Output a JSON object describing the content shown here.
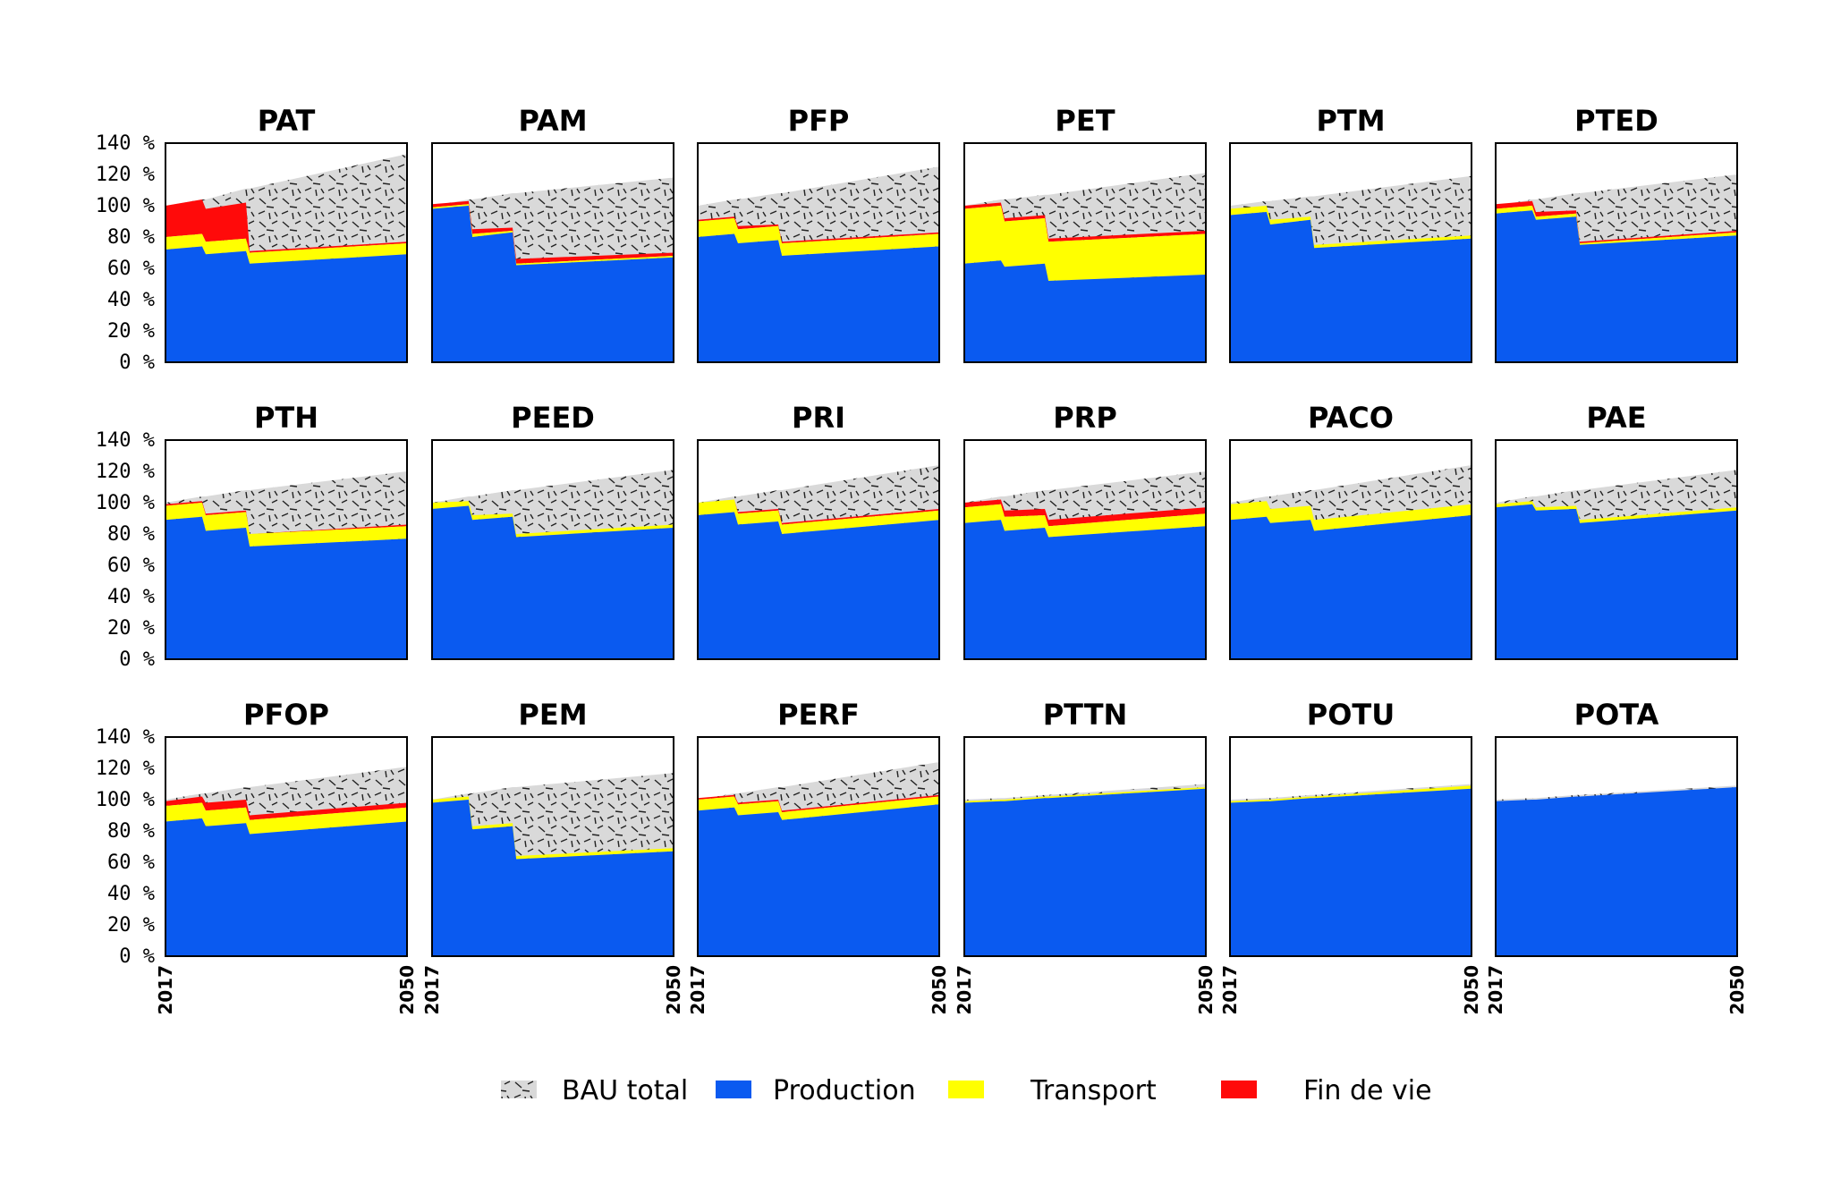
{
  "chart_data": {
    "type": "area",
    "layout": "small-multiples 3x6",
    "x_start": 2017,
    "x_end": 2050,
    "ylim": [
      0,
      140
    ],
    "yticks": [
      "0 %",
      "20 %",
      "40 %",
      "60 %",
      "80 %",
      "100 %",
      "120 %",
      "140 %"
    ],
    "xticks": [
      "2017",
      "2050"
    ],
    "x_points": [
      2017,
      2022,
      2022.5,
      2028,
      2028.5,
      2050
    ],
    "colors": {
      "bau": "#d9d9d9",
      "bau_hatch": "#222222",
      "production": "#0a5af0",
      "transport": "#ffff00",
      "fin_de_vie": "#ff0a0a",
      "border": "#000000"
    },
    "legend": [
      {
        "key": "bau",
        "label": "BAU total"
      },
      {
        "key": "production",
        "label": "Production"
      },
      {
        "key": "transport",
        "label": "Transport"
      },
      {
        "key": "fin_de_vie",
        "label": "Fin de vie"
      }
    ],
    "panels": [
      {
        "title": "PAT",
        "bau": [
          100,
          104,
          104,
          111,
          111,
          133
        ],
        "production": [
          72,
          74,
          69,
          71,
          63,
          69
        ],
        "transport": [
          80,
          82,
          77,
          79,
          70,
          76
        ],
        "fin_de_vie": [
          100,
          104,
          98,
          102,
          71,
          77
        ]
      },
      {
        "title": "PAM",
        "bau": [
          100,
          104,
          104,
          108,
          108,
          118
        ],
        "production": [
          98,
          100,
          80,
          83,
          62,
          67
        ],
        "transport": [
          99,
          101,
          82,
          84,
          63,
          68
        ],
        "fin_de_vie": [
          101,
          103,
          85,
          86,
          66,
          70
        ]
      },
      {
        "title": "PFP",
        "bau": [
          100,
          104,
          104,
          108,
          108,
          125
        ],
        "production": [
          80,
          82,
          76,
          78,
          68,
          74
        ],
        "transport": [
          90,
          92,
          85,
          87,
          76,
          82
        ],
        "fin_de_vie": [
          91,
          93,
          87,
          88,
          77,
          83
        ]
      },
      {
        "title": "PET",
        "bau": [
          100,
          104,
          104,
          107,
          107,
          121
        ],
        "production": [
          63,
          65,
          61,
          63,
          52,
          56
        ],
        "transport": [
          98,
          100,
          90,
          92,
          77,
          82
        ],
        "fin_de_vie": [
          100,
          102,
          92,
          94,
          79,
          84
        ]
      },
      {
        "title": "PTM",
        "bau": [
          100,
          103,
          103,
          106,
          106,
          119
        ],
        "production": [
          94,
          96,
          88,
          91,
          73,
          79
        ],
        "transport": [
          98,
          100,
          91,
          93,
          75,
          81
        ],
        "fin_de_vie": [
          98,
          100,
          91,
          93,
          75,
          81
        ]
      },
      {
        "title": "PTED",
        "bau": [
          100,
          104,
          104,
          108,
          108,
          120
        ],
        "production": [
          95,
          97,
          91,
          93,
          75,
          81
        ],
        "transport": [
          98,
          100,
          93,
          95,
          76,
          83
        ],
        "fin_de_vie": [
          101,
          103,
          96,
          97,
          77,
          84
        ]
      },
      {
        "title": "PTH",
        "bau": [
          100,
          104,
          104,
          108,
          108,
          120
        ],
        "production": [
          89,
          91,
          82,
          84,
          72,
          77
        ],
        "transport": [
          98,
          100,
          92,
          94,
          80,
          85
        ],
        "fin_de_vie": [
          99,
          101,
          93,
          95,
          80,
          86
        ]
      },
      {
        "title": "PEED",
        "bau": [
          100,
          104,
          104,
          108,
          108,
          121
        ],
        "production": [
          96,
          98,
          89,
          91,
          78,
          84
        ],
        "transport": [
          100,
          101,
          92,
          93,
          80,
          86
        ],
        "fin_de_vie": [
          100,
          101,
          92,
          93,
          80,
          86
        ]
      },
      {
        "title": "PRI",
        "bau": [
          100,
          104,
          104,
          108,
          108,
          124
        ],
        "production": [
          92,
          94,
          86,
          88,
          80,
          89
        ],
        "transport": [
          100,
          102,
          93,
          95,
          86,
          95
        ],
        "fin_de_vie": [
          100,
          102,
          94,
          96,
          87,
          96
        ]
      },
      {
        "title": "PRP",
        "bau": [
          100,
          104,
          104,
          108,
          108,
          120
        ],
        "production": [
          87,
          89,
          82,
          84,
          78,
          85
        ],
        "transport": [
          97,
          99,
          91,
          92,
          85,
          93
        ],
        "fin_de_vie": [
          100,
          102,
          95,
          96,
          89,
          97
        ]
      },
      {
        "title": "PACO",
        "bau": [
          100,
          104,
          104,
          108,
          108,
          124
        ],
        "production": [
          89,
          91,
          87,
          89,
          82,
          92
        ],
        "transport": [
          99,
          101,
          96,
          98,
          89,
          99
        ],
        "fin_de_vie": [
          99,
          101,
          96,
          98,
          89,
          99
        ]
      },
      {
        "title": "PAE",
        "bau": [
          100,
          104,
          104,
          108,
          108,
          121
        ],
        "production": [
          97,
          99,
          95,
          96,
          87,
          95
        ],
        "transport": [
          99,
          101,
          97,
          98,
          89,
          97
        ],
        "fin_de_vie": [
          99,
          101,
          97,
          98,
          89,
          97
        ]
      },
      {
        "title": "PFOP",
        "bau": [
          100,
          104,
          104,
          108,
          108,
          121
        ],
        "production": [
          86,
          88,
          83,
          85,
          78,
          86
        ],
        "transport": [
          96,
          98,
          93,
          95,
          87,
          95
        ],
        "fin_de_vie": [
          99,
          102,
          98,
          100,
          90,
          98
        ]
      },
      {
        "title": "PEM",
        "bau": [
          100,
          104,
          104,
          108,
          108,
          117
        ],
        "production": [
          98,
          100,
          81,
          83,
          62,
          67
        ],
        "transport": [
          100,
          102,
          83,
          85,
          64,
          69
        ],
        "fin_de_vie": [
          100,
          102,
          83,
          85,
          64,
          69
        ]
      },
      {
        "title": "PERF",
        "bau": [
          100,
          104,
          104,
          108,
          108,
          124
        ],
        "production": [
          93,
          95,
          90,
          92,
          87,
          97
        ],
        "transport": [
          100,
          102,
          97,
          99,
          92,
          102
        ],
        "fin_de_vie": [
          101,
          103,
          98,
          100,
          93,
          103
        ]
      },
      {
        "title": "PTTN",
        "bau": [
          100,
          101,
          101,
          103,
          103,
          110
        ],
        "production": [
          98,
          99,
          99,
          101,
          101,
          107
        ],
        "transport": [
          99,
          100,
          100,
          102,
          102,
          108
        ],
        "fin_de_vie": [
          99,
          100,
          100,
          102,
          102,
          108
        ]
      },
      {
        "title": "POTU",
        "bau": [
          100,
          101,
          101,
          103,
          103,
          110
        ],
        "production": [
          98,
          99,
          99,
          101,
          101,
          107
        ],
        "transport": [
          99,
          100,
          100,
          102,
          102,
          109
        ],
        "fin_de_vie": [
          99,
          100,
          100,
          102,
          102,
          109
        ]
      },
      {
        "title": "POTA",
        "bau": [
          100,
          101,
          101,
          103,
          103,
          109
        ],
        "production": [
          99,
          100,
          100,
          102,
          102,
          108
        ],
        "transport": [
          99,
          100,
          100,
          102,
          102,
          108
        ],
        "fin_de_vie": [
          99,
          100,
          100,
          102,
          102,
          108
        ]
      }
    ]
  }
}
